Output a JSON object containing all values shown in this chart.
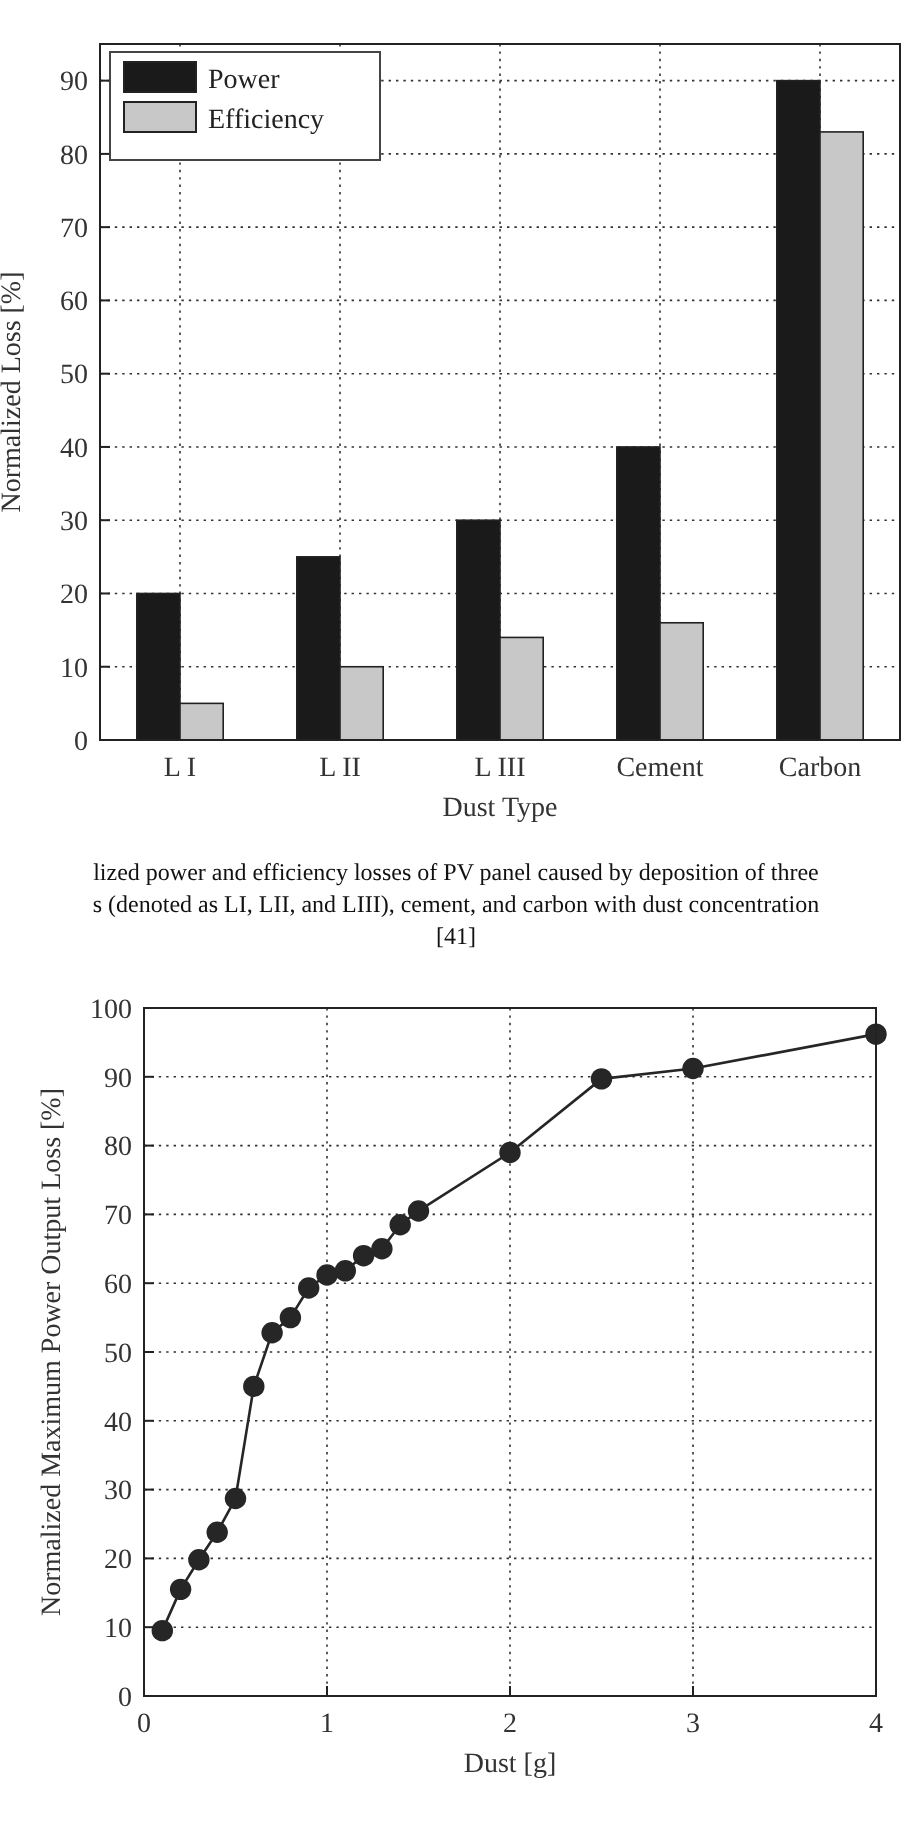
{
  "chart_data": [
    {
      "type": "bar",
      "xlabel": "Dust Type",
      "ylabel": "Normalized Loss [%]",
      "categories": [
        "L I",
        "L II",
        "L III",
        "Cement",
        "Carbon"
      ],
      "series": [
        {
          "name": "Power",
          "color": "#1a1a1a",
          "values": [
            20,
            25,
            30,
            40,
            90
          ]
        },
        {
          "name": "Efficiency",
          "color": "#c8c8c8",
          "values": [
            5,
            10,
            14,
            16,
            83
          ]
        }
      ],
      "ylim": [
        0,
        95
      ],
      "yticks": [
        0,
        10,
        20,
        30,
        40,
        50,
        60,
        70,
        80,
        90
      ],
      "grid": true,
      "legend": "top left",
      "annotations": [
        "lized power and efficiency losses of PV panel caused by deposition of three",
        "s (denoted as LI, LII, and LIII), cement, and carbon with dust concentration",
        "[41]"
      ]
    },
    {
      "type": "line",
      "xlabel": "Dust [g]",
      "ylabel": "Normalized Maximum Power Output Loss [%]",
      "marker": "circle",
      "grid": true,
      "x": [
        0.1,
        0.2,
        0.3,
        0.4,
        0.5,
        0.6,
        0.7,
        0.8,
        0.9,
        1.0,
        1.1,
        1.2,
        1.3,
        1.4,
        1.5,
        2,
        2.5,
        3,
        4
      ],
      "series": [
        {
          "color": "#262626",
          "values": [
            9.5,
            15.5,
            19.8,
            23.8,
            28.7,
            45,
            52.8,
            55,
            59.3,
            61.2,
            61.8,
            64,
            65,
            68.5,
            70.5,
            79,
            89.7,
            91.2,
            96.2
          ]
        }
      ],
      "xlim": [
        0,
        4
      ],
      "xticks": [
        0,
        1,
        2,
        3,
        4
      ],
      "ylim": [
        0,
        100
      ],
      "yticks": [
        0,
        10,
        20,
        30,
        40,
        50,
        60,
        70,
        80,
        90,
        100
      ]
    }
  ]
}
